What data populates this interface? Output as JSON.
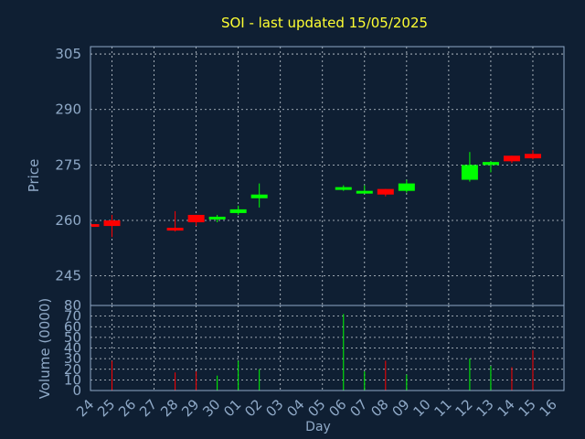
{
  "chart_data": {
    "type": "candlestick",
    "title": "SOI - last updated 15/05/2025",
    "xlabel": "Day",
    "price_ylabel": "Price",
    "volume_ylabel": "Volume (0000)",
    "price_ylim": [
      237,
      307
    ],
    "price_yticks": [
      245,
      260,
      275,
      290,
      305
    ],
    "volume_ylim": [
      0,
      80
    ],
    "volume_yticks": [
      0,
      10,
      20,
      30,
      40,
      50,
      60,
      70,
      80
    ],
    "grid": true,
    "x_tick_labels": [
      "24",
      "25",
      "26",
      "27",
      "28",
      "29",
      "30",
      "01",
      "02",
      "03",
      "04",
      "05",
      "06",
      "07",
      "08",
      "09",
      "10",
      "11",
      "12",
      "13",
      "14",
      "15",
      "16"
    ],
    "up_color": "#00ff00",
    "down_color": "#ff0000",
    "candles": [
      {
        "day": "24",
        "open": 259.0,
        "high": 259.3,
        "low": 258.5,
        "close": 258.5,
        "volume": 0
      },
      {
        "day": "25",
        "open": 260.0,
        "high": 261.5,
        "low": 255.5,
        "close": 258.5,
        "volume": 28
      },
      {
        "day": "28",
        "open": 258.0,
        "high": 262.5,
        "low": 257.0,
        "close": 257.3,
        "volume": 17
      },
      {
        "day": "29",
        "open": 261.5,
        "high": 261.5,
        "low": 258.5,
        "close": 259.5,
        "volume": 18
      },
      {
        "day": "30",
        "open": 260.5,
        "high": 261.5,
        "low": 259.5,
        "close": 261.0,
        "volume": 14
      },
      {
        "day": "01",
        "open": 262.0,
        "high": 264.0,
        "low": 261.5,
        "close": 263.0,
        "volume": 28
      },
      {
        "day": "02",
        "open": 266.0,
        "high": 270.0,
        "low": 263.5,
        "close": 267.0,
        "volume": 20
      },
      {
        "day": "06",
        "open": 268.8,
        "high": 269.5,
        "low": 268.0,
        "close": 269.0,
        "volume": 72
      },
      {
        "day": "07",
        "open": 267.7,
        "high": 269.5,
        "low": 267.5,
        "close": 268.0,
        "volume": 18
      },
      {
        "day": "08",
        "open": 268.5,
        "high": 268.5,
        "low": 266.5,
        "close": 267.0,
        "volume": 28
      },
      {
        "day": "09",
        "open": 268.0,
        "high": 271.0,
        "low": 267.5,
        "close": 270.0,
        "volume": 15
      },
      {
        "day": "12",
        "open": 271.0,
        "high": 278.5,
        "low": 270.5,
        "close": 275.0,
        "volume": 30
      },
      {
        "day": "13",
        "open": 275.0,
        "high": 276.0,
        "low": 273.0,
        "close": 275.8,
        "volume": 23
      },
      {
        "day": "14",
        "open": 277.5,
        "high": 277.5,
        "low": 275.5,
        "close": 276.0,
        "volume": 22
      },
      {
        "day": "15",
        "open": 278.0,
        "high": 279.0,
        "low": 276.5,
        "close": 276.8,
        "volume": 38
      }
    ]
  }
}
